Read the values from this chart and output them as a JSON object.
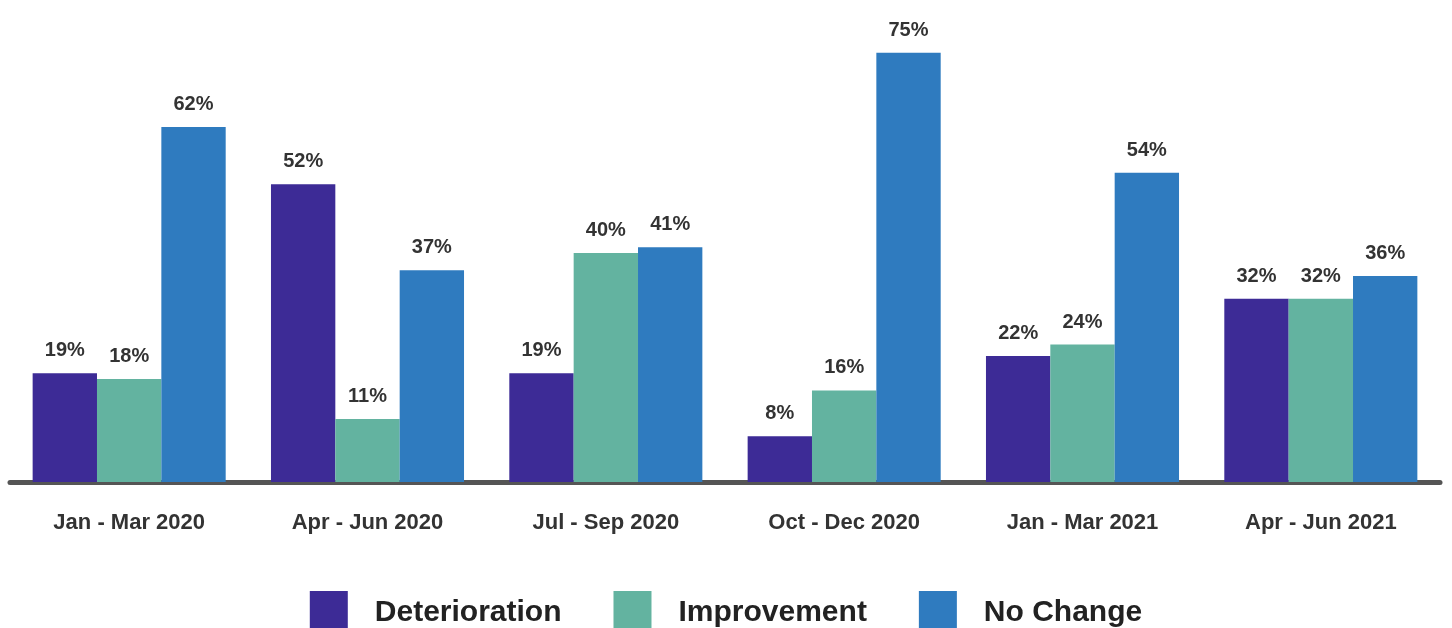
{
  "chart_data": {
    "type": "bar",
    "categories": [
      "Jan - Mar 2020",
      "Apr - Jun 2020",
      "Jul - Sep 2020",
      "Oct - Dec 2020",
      "Jan - Mar 2021",
      "Apr - Jun 2021"
    ],
    "series": [
      {
        "name": "Deterioration",
        "color": "#3d2b96",
        "values": [
          19,
          52,
          19,
          8,
          22,
          32
        ],
        "value_labels": [
          "19%",
          "52%",
          "19%",
          "8%",
          "22%",
          "32%"
        ]
      },
      {
        "name": "Improvement",
        "color": "#63b3a0",
        "values": [
          18,
          11,
          40,
          16,
          24,
          32
        ],
        "value_labels": [
          "18%",
          "11%",
          "40%",
          "16%",
          "24%",
          "32%"
        ]
      },
      {
        "name": "No Change",
        "color": "#2f7bbf",
        "values": [
          62,
          37,
          41,
          75,
          54,
          36
        ],
        "value_labels": [
          "62%",
          "37%",
          "41%",
          "75%",
          "54%",
          "36%"
        ]
      }
    ],
    "legend": "bottom"
  }
}
